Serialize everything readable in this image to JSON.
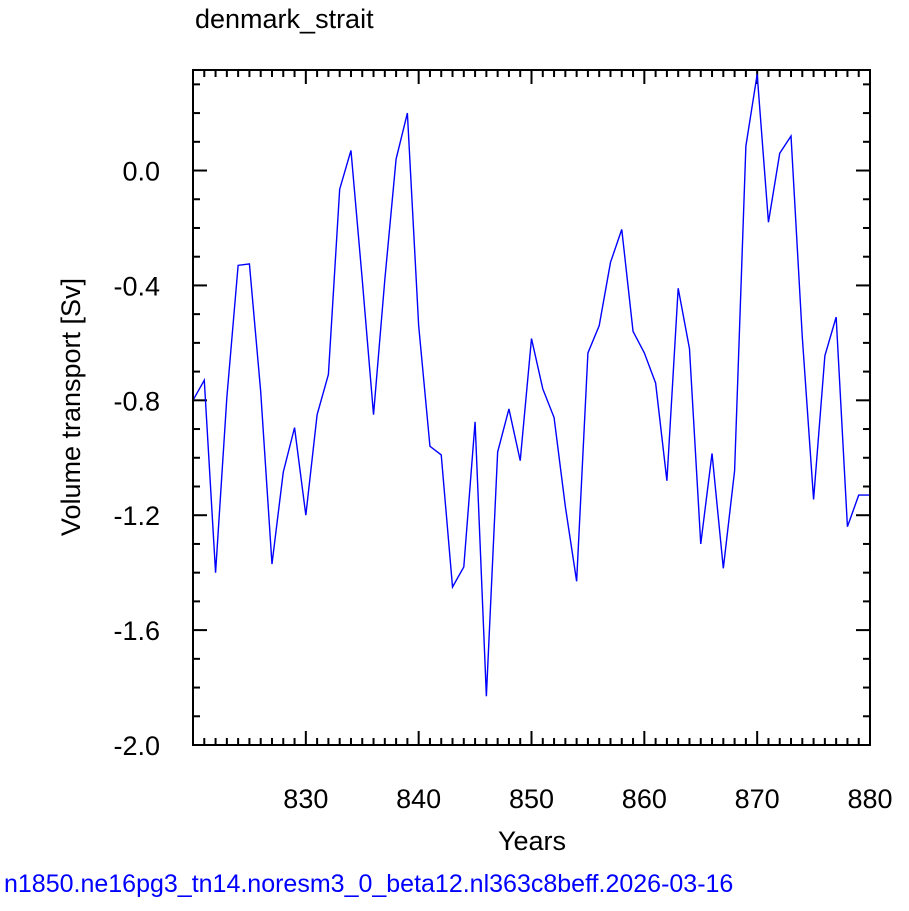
{
  "chart_data": {
    "type": "line",
    "title": "denmark_strait",
    "xlabel": "Years",
    "ylabel": "Volume transport [Sv]",
    "xlim": [
      820,
      880
    ],
    "ylim": [
      -2.0,
      0.35
    ],
    "x_ticks": [
      830,
      840,
      850,
      860,
      870,
      880
    ],
    "y_ticks": [
      -2.0,
      -1.6,
      -1.2,
      -0.8,
      -0.4,
      0.0
    ],
    "x_tick_labels": [
      "830",
      "840",
      "850",
      "860",
      "870",
      "880"
    ],
    "y_tick_labels": [
      "-2.0",
      "-1.6",
      "-1.2",
      "-0.8",
      "-0.4",
      "0.0"
    ],
    "grid": false,
    "line_color": "#0000ff",
    "series": [
      {
        "x": [
          820,
          821,
          822,
          823,
          824,
          825,
          826,
          827,
          828,
          829,
          830,
          831,
          832,
          833,
          834,
          835,
          836,
          837,
          838,
          839,
          840,
          841,
          842,
          843,
          844,
          845,
          846,
          847,
          848,
          849,
          850,
          851,
          852,
          853,
          854,
          855,
          856,
          857,
          858,
          859,
          860,
          861,
          862,
          863,
          864,
          865,
          866,
          867,
          868,
          869,
          870,
          871,
          872,
          873,
          874,
          875,
          876,
          877,
          878,
          879,
          880
        ],
        "values": [
          -0.8,
          -0.73,
          -1.4,
          -0.79,
          -0.33,
          -0.325,
          -0.77,
          -1.37,
          -1.05,
          -0.895,
          -1.2,
          -0.85,
          -0.71,
          -0.065,
          0.07,
          -0.38,
          -0.85,
          -0.38,
          0.04,
          0.2,
          -0.54,
          -0.96,
          -0.99,
          -1.45,
          -1.38,
          -0.875,
          -1.83,
          -0.98,
          -0.83,
          -1.01,
          -0.585,
          -0.76,
          -0.86,
          -1.17,
          -1.43,
          -0.635,
          -0.54,
          -0.32,
          -0.205,
          -0.56,
          -0.635,
          -0.74,
          -1.08,
          -0.41,
          -0.62,
          -1.3,
          -0.985,
          -1.385,
          -1.045,
          0.085,
          0.335,
          -0.18,
          0.06,
          0.12,
          -0.58,
          -1.145,
          -0.645,
          -0.51,
          -1.24,
          -1.13,
          -1.13
        ]
      }
    ]
  },
  "footer": {
    "case_name": "n1850.ne16pg3_tn14.noresm3_0_beta12.nl363c8beff.2026-03-16"
  }
}
